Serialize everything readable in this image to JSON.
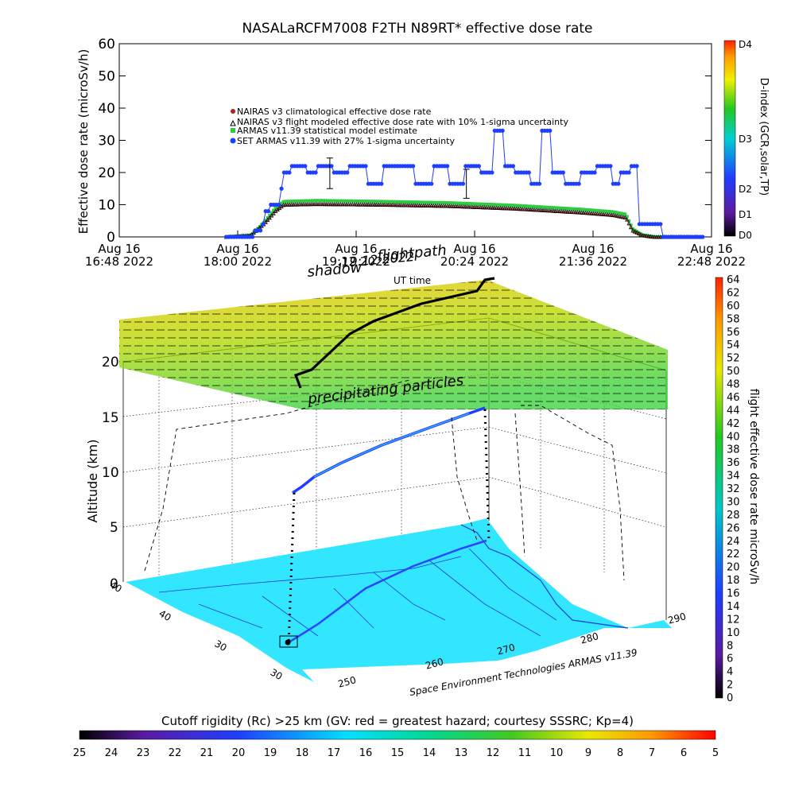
{
  "chart_data": [
    {
      "type": "scatter",
      "title": "NASALaRCFM7008  F2TH N89RT* effective dose rate",
      "ylabel": "Effective dose rate (microSv/h)",
      "xlabel": "UT time",
      "ylim": [
        0,
        60
      ],
      "yticks": [
        "0",
        "10",
        "20",
        "30",
        "40",
        "50",
        "60"
      ],
      "xlim": [
        0,
        360
      ],
      "xticks": [
        {
          "min": 0,
          "line1": "Aug 16",
          "line2": "16:48 2022"
        },
        {
          "min": 72,
          "line1": "Aug 16",
          "line2": "18:00 2022"
        },
        {
          "min": 144,
          "line1": "Aug 16",
          "line2": "19:12 2022"
        },
        {
          "min": 216,
          "line1": "Aug 16",
          "line2": "20:24 2022"
        },
        {
          "min": 288,
          "line1": "Aug 16",
          "line2": "21:36 2022"
        },
        {
          "min": 360,
          "line1": "Aug 16",
          "line2": "22:48 2022"
        }
      ],
      "legend": [
        {
          "label": "NAIRAS v3 climatological effective dose rate",
          "color": "#b22222",
          "marker": "circle"
        },
        {
          "label": "NAIRAS v3 flight modeled effective dose rate with 10% 1-sigma uncertainty",
          "color": "#000000",
          "marker": "triangle"
        },
        {
          "label": "ARMAS v11.39 statistical model estimate",
          "color": "#2ecc40",
          "marker": "square"
        },
        {
          "label": "SET ARMAS v11.39 with 27% 1-sigma uncertainty",
          "color": "#1f3fff",
          "marker": "circle"
        }
      ],
      "legend_position": "upper-left",
      "series": [
        {
          "name": "NAIRAS v3 flight modeled effective dose rate with 10% 1-sigma uncertainty",
          "x": [
            65,
            80,
            88,
            95,
            100,
            120,
            160,
            200,
            240,
            280,
            300,
            308,
            312,
            318,
            325,
            340,
            355
          ],
          "y": [
            0,
            0.5,
            4,
            8,
            10,
            10.2,
            10,
            9.6,
            8.8,
            7.6,
            6.8,
            6,
            2,
            0.5,
            0,
            0,
            0
          ]
        },
        {
          "name": "ARMAS v11.39 statistical model estimate",
          "x": [
            65,
            80,
            88,
            95,
            100,
            120,
            160,
            200,
            240,
            280,
            300,
            308,
            312,
            318,
            325,
            340,
            355
          ],
          "y": [
            0,
            0.5,
            4.5,
            9,
            11,
            11.3,
            11,
            10.6,
            9.8,
            8.6,
            7.8,
            7,
            2.5,
            0.6,
            0,
            0,
            0
          ]
        },
        {
          "name": "SET ARMAS v11.39 with 27% 1-sigma uncertainty",
          "x": [
            65,
            75,
            82,
            86,
            88,
            92,
            95,
            98,
            100,
            104,
            108,
            114,
            120,
            130,
            140,
            150,
            160,
            170,
            180,
            190,
            200,
            210,
            220,
            228,
            234,
            240,
            250,
            256,
            262,
            270,
            280,
            290,
            300,
            305,
            310,
            315,
            320,
            330,
            345,
            355
          ],
          "y": [
            0,
            0,
            2,
            4,
            8,
            10,
            10,
            15,
            20,
            22,
            22,
            20,
            22,
            20,
            22,
            16.5,
            22,
            22,
            16.5,
            22,
            16.5,
            22,
            20,
            33,
            22,
            20,
            16.5,
            33,
            20,
            16.5,
            20,
            22,
            16.5,
            20,
            22,
            4,
            4,
            0,
            0,
            0
          ]
        }
      ],
      "error_bars": [
        {
          "x": 128,
          "y": 20,
          "low": 15,
          "high": 24.5
        },
        {
          "x": 211,
          "y": 16.5,
          "low": 12,
          "high": 21
        }
      ],
      "right_colorbar": {
        "label": "D-index (GCR,solar,TP)",
        "ticks": [
          "D0",
          "D1",
          "D2",
          "D3",
          "D4"
        ]
      },
      "grid": false
    },
    {
      "type": "scatter",
      "title": "",
      "zlabel": "Altitude (km)",
      "zticks": [
        "0",
        "5",
        "10",
        "15",
        "20"
      ],
      "lat_ticks": [
        "40",
        "40",
        "30",
        "30"
      ],
      "lon_ticks": [
        "250",
        "260",
        "270",
        "280",
        "290"
      ],
      "annotations": {
        "shadow": "shadow",
        "flightpath": "flightpath",
        "overlap_time": "19:12 2022",
        "ut_time": "UT time",
        "precipitating": "precipitating particles",
        "credit": "Space Environment Technologies ARMAS v11.39"
      },
      "right_colorbar": {
        "label": "flight effective dose rate microSv/h",
        "ticks": [
          "0",
          "2",
          "4",
          "6",
          "8",
          "10",
          "12",
          "14",
          "16",
          "18",
          "20",
          "22",
          "24",
          "26",
          "28",
          "30",
          "32",
          "34",
          "36",
          "38",
          "40",
          "42",
          "44",
          "46",
          "48",
          "50",
          "52",
          "54",
          "56",
          "58",
          "60",
          "62",
          "64"
        ]
      },
      "bottom_colorbar": {
        "label": "Cutoff rigidity (Rc) >25 km (GV: red = greatest hazard; courtesy SSSRC; Kp=4)",
        "ticks": [
          "25",
          "24",
          "23",
          "22",
          "21",
          "20",
          "19",
          "18",
          "17",
          "16",
          "15",
          "14",
          "13",
          "12",
          "11",
          "10",
          "9",
          "8",
          "7",
          "6",
          "5"
        ]
      }
    }
  ],
  "colors": {
    "nairas_clim": "#b22222",
    "nairas_flight": "#000000",
    "armas_model": "#2ecc40",
    "set_armas": "#1f3fff",
    "map_fill": "#33e6ff"
  }
}
